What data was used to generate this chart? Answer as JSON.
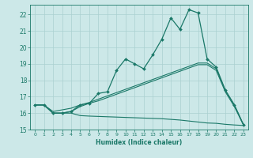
{
  "xlabel": "Humidex (Indice chaleur)",
  "bg_color": "#cce8e8",
  "grid_color": "#aad0d0",
  "line_color": "#1a7868",
  "xlim": [
    -0.5,
    23.5
  ],
  "ylim": [
    15,
    22.6
  ],
  "yticks": [
    15,
    16,
    17,
    18,
    19,
    20,
    21,
    22
  ],
  "xticks": [
    0,
    1,
    2,
    3,
    4,
    5,
    6,
    7,
    8,
    9,
    10,
    11,
    12,
    13,
    14,
    15,
    16,
    17,
    18,
    19,
    20,
    21,
    22,
    23
  ],
  "main_line_x": [
    0,
    1,
    2,
    3,
    4,
    5,
    6,
    7,
    8,
    9,
    10,
    11,
    12,
    13,
    14,
    15,
    16,
    17,
    18,
    19,
    20,
    21,
    22,
    23
  ],
  "main_line_y": [
    16.5,
    16.5,
    16.0,
    16.0,
    16.1,
    16.5,
    16.6,
    17.2,
    17.3,
    18.6,
    19.3,
    19.0,
    18.7,
    19.55,
    20.5,
    21.8,
    21.1,
    22.3,
    22.1,
    19.3,
    18.8,
    17.4,
    16.5,
    15.3
  ],
  "line2_x": [
    0,
    1,
    2,
    3,
    4,
    5,
    6,
    7,
    8,
    9,
    10,
    11,
    12,
    13,
    14,
    15,
    16,
    17,
    18,
    19,
    20,
    21,
    22,
    23
  ],
  "line2_y": [
    16.5,
    16.5,
    16.1,
    16.2,
    16.3,
    16.5,
    16.65,
    16.85,
    17.05,
    17.25,
    17.45,
    17.65,
    17.85,
    18.05,
    18.25,
    18.45,
    18.65,
    18.85,
    19.05,
    19.05,
    18.7,
    17.4,
    16.5,
    15.3
  ],
  "line3_x": [
    0,
    1,
    2,
    3,
    4,
    5,
    6,
    7,
    8,
    9,
    10,
    11,
    12,
    13,
    14,
    15,
    16,
    17,
    18,
    19,
    20,
    21,
    22,
    23
  ],
  "line3_y": [
    16.5,
    16.5,
    16.0,
    16.0,
    16.0,
    15.85,
    15.82,
    15.8,
    15.78,
    15.76,
    15.74,
    15.72,
    15.7,
    15.68,
    15.66,
    15.62,
    15.58,
    15.52,
    15.46,
    15.4,
    15.38,
    15.32,
    15.28,
    15.25
  ],
  "line4_x": [
    0,
    1,
    2,
    3,
    4,
    5,
    6,
    7,
    8,
    9,
    10,
    11,
    12,
    13,
    14,
    15,
    16,
    17,
    18,
    19,
    20,
    21,
    22,
    23
  ],
  "line4_y": [
    16.5,
    16.5,
    16.0,
    16.0,
    16.1,
    16.4,
    16.6,
    16.75,
    16.95,
    17.15,
    17.35,
    17.55,
    17.75,
    17.95,
    18.15,
    18.35,
    18.55,
    18.75,
    18.95,
    18.95,
    18.6,
    17.3,
    16.4,
    15.28
  ]
}
